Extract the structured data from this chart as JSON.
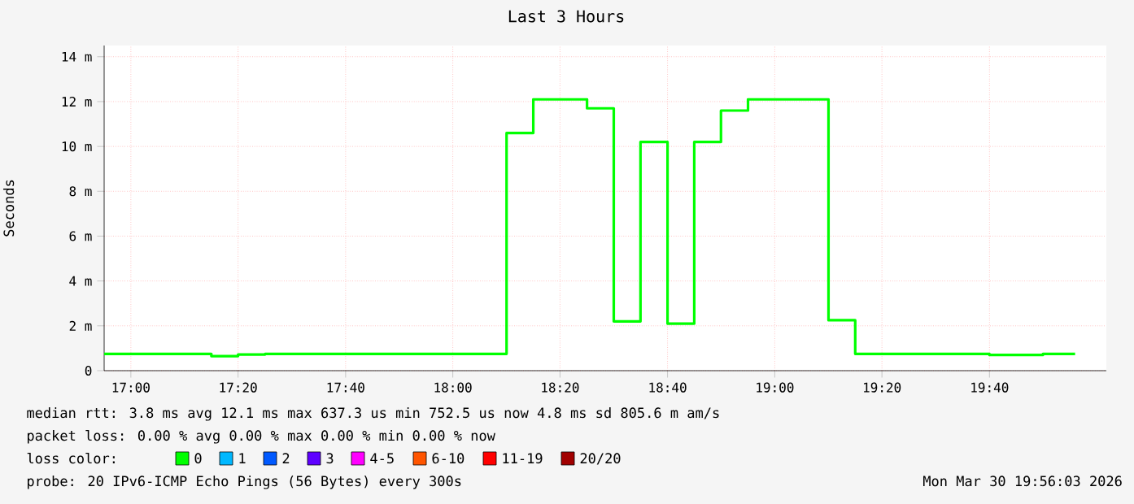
{
  "chart_data": {
    "type": "step",
    "title": "Last 3 Hours",
    "ylabel": "Seconds",
    "x": [
      16.917,
      17.25,
      17.333,
      17.417,
      18.167,
      18.25,
      18.417,
      18.5,
      18.583,
      18.667,
      18.75,
      18.833,
      18.917,
      19.167,
      19.25,
      19.667,
      19.833,
      19.933
    ],
    "series": [
      {
        "name": "0",
        "color": "#00ff00",
        "values": [
          0.75,
          0.65,
          0.72,
          0.75,
          10.6,
          12.1,
          11.7,
          2.2,
          10.2,
          2.1,
          10.2,
          11.6,
          12.1,
          2.25,
          0.75,
          0.7,
          0.75,
          0.75
        ]
      },
      {
        "name": "1",
        "color": "#00b8ff",
        "values": [
          null,
          null,
          null,
          null,
          null,
          null,
          null,
          null,
          null,
          null,
          null,
          null,
          null,
          null,
          null,
          null,
          null,
          null
        ]
      },
      {
        "name": "2",
        "color": "#0059ff",
        "values": [
          null,
          null,
          null,
          null,
          null,
          null,
          null,
          null,
          null,
          null,
          null,
          null,
          null,
          null,
          null,
          null,
          null,
          null
        ]
      },
      {
        "name": "3",
        "color": "#5e00ff",
        "values": [
          null,
          null,
          null,
          null,
          null,
          null,
          null,
          null,
          null,
          null,
          null,
          null,
          null,
          null,
          null,
          null,
          null,
          null
        ]
      },
      {
        "name": "4-5",
        "color": "#ff00ff",
        "values": [
          null,
          null,
          null,
          null,
          null,
          null,
          null,
          null,
          null,
          null,
          null,
          null,
          null,
          null,
          null,
          null,
          null,
          null
        ]
      },
      {
        "name": "6-10",
        "color": "#ff5500",
        "values": [
          null,
          null,
          null,
          null,
          null,
          null,
          null,
          null,
          null,
          null,
          null,
          null,
          null,
          null,
          null,
          null,
          null,
          null
        ]
      },
      {
        "name": "11-19",
        "color": "#ff0000",
        "values": [
          null,
          null,
          null,
          null,
          null,
          null,
          null,
          null,
          null,
          null,
          null,
          null,
          null,
          null,
          null,
          null,
          null,
          null
        ]
      },
      {
        "name": "20/20",
        "color": "#a10000",
        "values": [
          null,
          null,
          null,
          null,
          null,
          null,
          null,
          null,
          null,
          null,
          null,
          null,
          null,
          null,
          null,
          null,
          null,
          null
        ]
      }
    ],
    "legend": "bottom",
    "legend_title": "loss color:",
    "xlim": [
      16.917,
      20.03
    ],
    "ylim": [
      0,
      14.5
    ],
    "xticks": [
      {
        "value": 17,
        "label": "17:00"
      },
      {
        "value": 17.333,
        "label": "17:20"
      },
      {
        "value": 17.667,
        "label": "17:40"
      },
      {
        "value": 18,
        "label": "18:00"
      },
      {
        "value": 18.333,
        "label": "18:20"
      },
      {
        "value": 18.667,
        "label": "18:40"
      },
      {
        "value": 19,
        "label": "19:00"
      },
      {
        "value": 19.333,
        "label": "19:20"
      },
      {
        "value": 19.667,
        "label": "19:40"
      }
    ],
    "yticks": [
      0,
      {
        "value": 2,
        "label": "2 m"
      },
      {
        "value": 4,
        "label": "4 m"
      },
      {
        "value": 6,
        "label": "6 m"
      },
      {
        "value": 8,
        "label": "8 m"
      },
      {
        "value": 10,
        "label": "10 m"
      },
      {
        "value": 12,
        "label": "12 m"
      },
      {
        "value": 14,
        "label": "14 m"
      }
    ],
    "grid": true,
    "annotations": [
      "median rtt:  3.8 ms avg  12.1 ms max  637.3 us min  752.5 us now  4.8 ms sd  805.6 m am/s",
      "packet loss: 0.00 % avg  0.00 % max  0.00 % min  0.00 % now",
      "probe:        20 IPv6-ICMP Echo Pings (56 Bytes) every 300s",
      "Mon Mar 30 19:56:03 2026"
    ]
  }
}
